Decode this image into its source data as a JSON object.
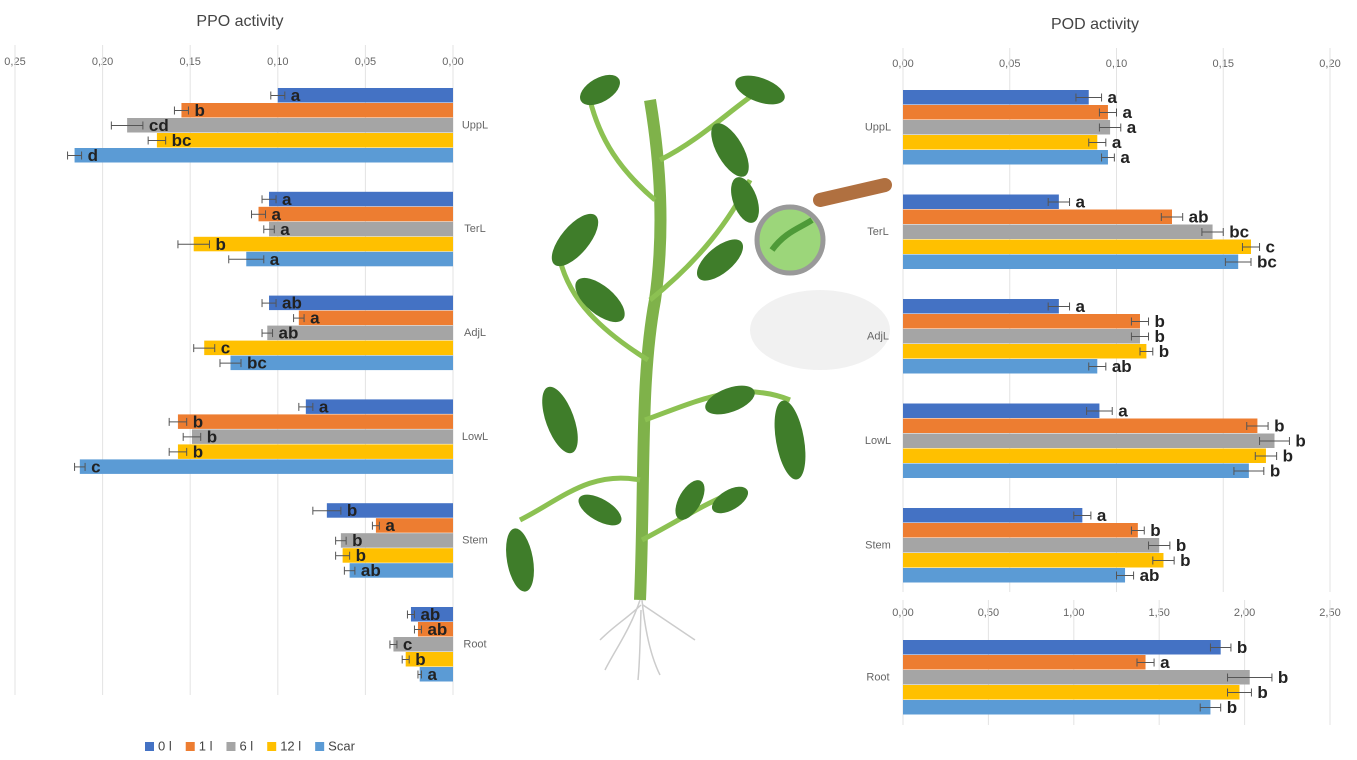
{
  "chart_data": [
    {
      "type": "bar",
      "orientation": "horizontal",
      "title": "PPO activity",
      "categories": [
        "UppL",
        "TerL",
        "AdjL",
        "LowL",
        "Stem",
        "Root"
      ],
      "xlim": [
        0.25,
        0
      ],
      "xticks": [
        {
          "value": 0.25,
          "label": "0,25"
        },
        {
          "value": 0.2,
          "label": "0,20"
        },
        {
          "value": 0.15,
          "label": "0,15"
        },
        {
          "value": 0.1,
          "label": "0,10"
        },
        {
          "value": 0.05,
          "label": "0,05"
        },
        {
          "value": 0,
          "label": "0,00"
        }
      ],
      "grid": true,
      "series": [
        {
          "name": "0 l",
          "color": "#4472c4",
          "values": [
            0.1,
            0.105,
            0.105,
            0.084,
            0.072,
            0.024
          ],
          "errors": [
            0.004,
            0.004,
            0.004,
            0.004,
            0.008,
            0.002
          ],
          "labels": [
            "a",
            "a",
            "ab",
            "a",
            "b",
            "ab"
          ]
        },
        {
          "name": "1 l",
          "color": "#ed7d31",
          "values": [
            0.155,
            0.111,
            0.088,
            0.157,
            0.044,
            0.02
          ],
          "errors": [
            0.004,
            0.004,
            0.003,
            0.005,
            0.002,
            0.002
          ],
          "labels": [
            "b",
            "a",
            "a",
            "b",
            "a",
            "ab"
          ]
        },
        {
          "name": "6 l",
          "color": "#a5a5a5",
          "values": [
            0.186,
            0.105,
            0.106,
            0.149,
            0.064,
            0.034
          ],
          "errors": [
            0.009,
            0.003,
            0.003,
            0.005,
            0.003,
            0.002
          ],
          "labels": [
            "cd",
            "a",
            "ab",
            "b",
            "b",
            "c"
          ]
        },
        {
          "name": "12 l",
          "color": "#ffc000",
          "values": [
            0.169,
            0.148,
            0.142,
            0.157,
            0.063,
            0.027
          ],
          "errors": [
            0.005,
            0.009,
            0.006,
            0.005,
            0.004,
            0.002
          ],
          "labels": [
            "bc",
            "b",
            "c",
            "b",
            "b",
            "b"
          ]
        },
        {
          "name": "Scar",
          "color": "#5b9bd5",
          "values": [
            0.216,
            0.118,
            0.127,
            0.213,
            0.059,
            0.019
          ],
          "errors": [
            0.004,
            0.01,
            0.006,
            0.003,
            0.003,
            0.001
          ],
          "labels": [
            "d",
            "a",
            "bc",
            "c",
            "ab",
            "a"
          ]
        }
      ]
    },
    {
      "type": "bar",
      "orientation": "horizontal",
      "title": "POD activity",
      "categories": [
        "UppL",
        "TerL",
        "AdjL",
        "LowL",
        "Stem"
      ],
      "xlim": [
        0,
        0.2
      ],
      "xticks": [
        {
          "value": 0,
          "label": "0,00"
        },
        {
          "value": 0.05,
          "label": "0,05"
        },
        {
          "value": 0.1,
          "label": "0,10"
        },
        {
          "value": 0.15,
          "label": "0,15"
        },
        {
          "value": 0.2,
          "label": "0,20"
        }
      ],
      "grid": true,
      "series": [
        {
          "color": "#4472c4",
          "values": [
            0.087,
            0.073,
            0.073,
            0.092,
            0.084
          ],
          "errors": [
            0.006,
            0.005,
            0.005,
            0.006,
            0.004
          ],
          "labels": [
            "a",
            "a",
            "a",
            "a",
            "a"
          ]
        },
        {
          "color": "#ed7d31",
          "values": [
            0.096,
            0.126,
            0.111,
            0.166,
            0.11
          ],
          "errors": [
            0.004,
            0.005,
            0.004,
            0.005,
            0.003
          ],
          "labels": [
            "a",
            "ab",
            "b",
            "b",
            "b"
          ]
        },
        {
          "color": "#a5a5a5",
          "values": [
            0.097,
            0.145,
            0.111,
            0.174,
            0.12
          ],
          "errors": [
            0.005,
            0.005,
            0.004,
            0.007,
            0.005
          ],
          "labels": [
            "a",
            "bc",
            "b",
            "b",
            "b"
          ]
        },
        {
          "color": "#ffc000",
          "values": [
            0.091,
            0.163,
            0.114,
            0.17,
            0.122
          ],
          "errors": [
            0.004,
            0.004,
            0.003,
            0.005,
            0.005
          ],
          "labels": [
            "a",
            "c",
            "b",
            "b",
            "b"
          ]
        },
        {
          "color": "#5b9bd5",
          "values": [
            0.096,
            0.157,
            0.091,
            0.162,
            0.104
          ],
          "errors": [
            0.003,
            0.006,
            0.004,
            0.007,
            0.004
          ],
          "labels": [
            "a",
            "bc",
            "ab",
            "b",
            "ab"
          ]
        }
      ]
    },
    {
      "type": "bar",
      "orientation": "horizontal",
      "categories": [
        "Root"
      ],
      "xlim": [
        0,
        2.5
      ],
      "xticks": [
        {
          "value": 0,
          "label": "0,00"
        },
        {
          "value": 0.5,
          "label": "0,50"
        },
        {
          "value": 1,
          "label": "1,00"
        },
        {
          "value": 1.5,
          "label": "1,50"
        },
        {
          "value": 2,
          "label": "2,00"
        },
        {
          "value": 2.5,
          "label": "2,50"
        }
      ],
      "grid": true,
      "series": [
        {
          "color": "#4472c4",
          "values": [
            1.86
          ],
          "errors": [
            0.06
          ],
          "labels": [
            "b"
          ]
        },
        {
          "color": "#ed7d31",
          "values": [
            1.42
          ],
          "errors": [
            0.05
          ],
          "labels": [
            "a"
          ]
        },
        {
          "color": "#a5a5a5",
          "values": [
            2.03
          ],
          "errors": [
            0.13
          ],
          "labels": [
            "b"
          ]
        },
        {
          "color": "#ffc000",
          "values": [
            1.97
          ],
          "errors": [
            0.07
          ],
          "labels": [
            "b"
          ]
        },
        {
          "color": "#5b9bd5",
          "values": [
            1.8
          ],
          "errors": [
            0.06
          ],
          "labels": [
            "b"
          ]
        }
      ]
    }
  ]
}
